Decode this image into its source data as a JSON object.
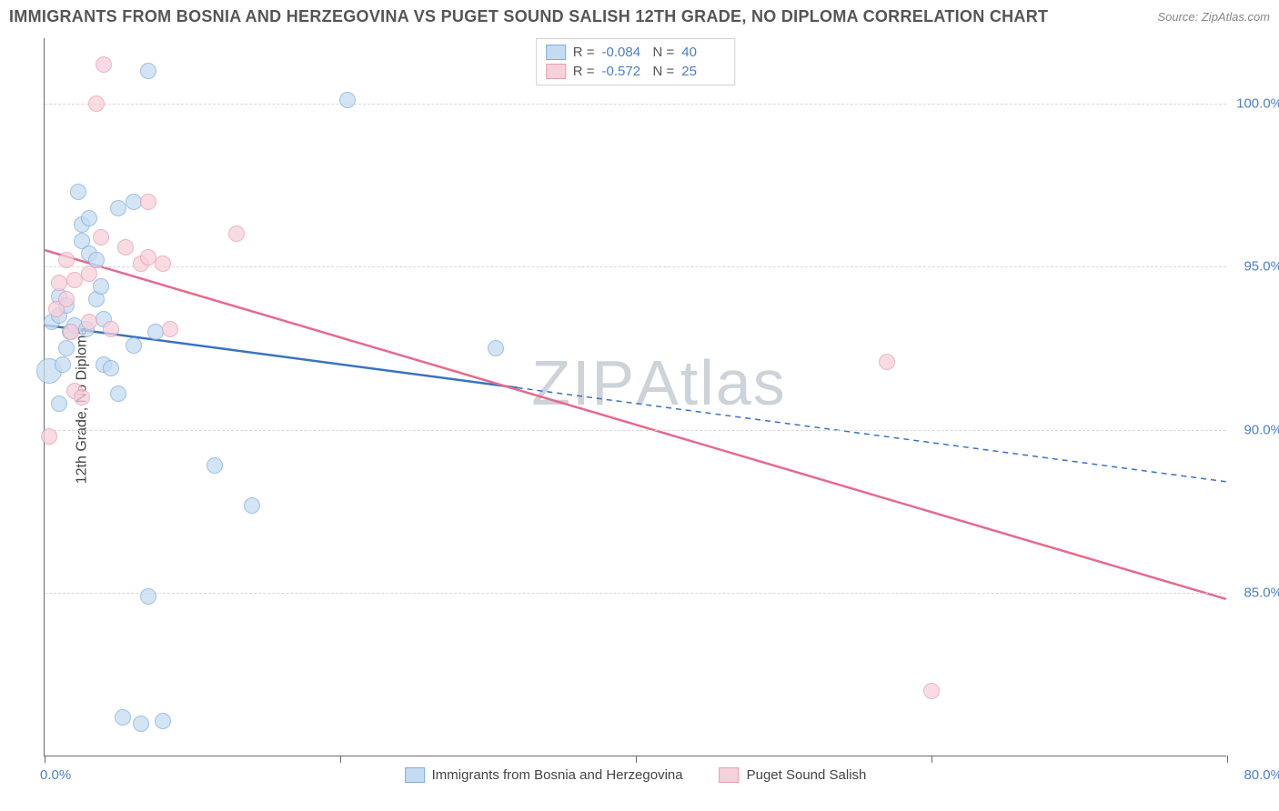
{
  "title": "IMMIGRANTS FROM BOSNIA AND HERZEGOVINA VS PUGET SOUND SALISH 12TH GRADE, NO DIPLOMA CORRELATION CHART",
  "source": "Source: ZipAtlas.com",
  "ylabel": "12th Grade, No Diploma",
  "watermark": "ZIPAtlas",
  "chart": {
    "type": "scatter",
    "xlim": [
      0,
      80
    ],
    "ylim": [
      80,
      102
    ],
    "yticks": [
      {
        "value": 85.0,
        "label": "85.0%"
      },
      {
        "value": 90.0,
        "label": "90.0%"
      },
      {
        "value": 95.0,
        "label": "95.0%"
      },
      {
        "value": 100.0,
        "label": "100.0%"
      }
    ],
    "xtick_positions": [
      0,
      20,
      40,
      60,
      80
    ],
    "xtick_labels": {
      "left": "0.0%",
      "right": "80.0%"
    },
    "grid_color": "#d8d8d8",
    "background_color": "#ffffff",
    "axis_color": "#6b6b6b",
    "label_color": "#4a7fc9",
    "series": [
      {
        "name": "Immigrants from Bosnia and Herzegovina",
        "color_fill": "#c5dbf2",
        "color_stroke": "#7faedc",
        "line_color": "#3a73c0",
        "marker_radius": 9,
        "marker_opacity": 0.75,
        "stats": {
          "R": "-0.084",
          "N": "40"
        },
        "trend": {
          "x1": 0,
          "y1": 93.2,
          "x2": 80,
          "y2": 88.4,
          "solid_until_x": 32
        },
        "points": [
          {
            "x": 0.3,
            "y": 91.8,
            "r": 14
          },
          {
            "x": 0.5,
            "y": 93.3
          },
          {
            "x": 1.0,
            "y": 93.5
          },
          {
            "x": 1.0,
            "y": 90.8
          },
          {
            "x": 1.0,
            "y": 94.1
          },
          {
            "x": 1.2,
            "y": 92.0
          },
          {
            "x": 1.5,
            "y": 93.8
          },
          {
            "x": 1.5,
            "y": 92.5
          },
          {
            "x": 1.7,
            "y": 93.0
          },
          {
            "x": 2.0,
            "y": 93.2
          },
          {
            "x": 2.3,
            "y": 97.3
          },
          {
            "x": 2.5,
            "y": 95.8
          },
          {
            "x": 2.5,
            "y": 96.3
          },
          {
            "x": 3.0,
            "y": 96.5
          },
          {
            "x": 3.0,
            "y": 95.4
          },
          {
            "x": 2.8,
            "y": 93.1
          },
          {
            "x": 3.5,
            "y": 94.0
          },
          {
            "x": 3.5,
            "y": 95.2
          },
          {
            "x": 3.8,
            "y": 94.4
          },
          {
            "x": 4.0,
            "y": 92.0
          },
          {
            "x": 4.0,
            "y": 93.4
          },
          {
            "x": 4.5,
            "y": 91.9
          },
          {
            "x": 5.0,
            "y": 96.8
          },
          {
            "x": 5.0,
            "y": 91.1
          },
          {
            "x": 5.3,
            "y": 81.2
          },
          {
            "x": 6.0,
            "y": 97.0
          },
          {
            "x": 6.0,
            "y": 92.6
          },
          {
            "x": 6.5,
            "y": 81.0
          },
          {
            "x": 7.0,
            "y": 101.0
          },
          {
            "x": 7.0,
            "y": 84.9
          },
          {
            "x": 7.5,
            "y": 93.0
          },
          {
            "x": 8.0,
            "y": 81.1
          },
          {
            "x": 11.5,
            "y": 88.9
          },
          {
            "x": 14.0,
            "y": 87.7
          },
          {
            "x": 20.5,
            "y": 100.1
          },
          {
            "x": 30.5,
            "y": 92.5
          }
        ]
      },
      {
        "name": "Puget Sound Salish",
        "color_fill": "#f6d0da",
        "color_stroke": "#e99db1",
        "line_color": "#e56b8c",
        "marker_radius": 9,
        "marker_opacity": 0.75,
        "stats": {
          "R": "-0.572",
          "N": "25"
        },
        "trend": {
          "x1": 0,
          "y1": 95.5,
          "x2": 80,
          "y2": 84.8,
          "solid_until_x": 80
        },
        "points": [
          {
            "x": 0.3,
            "y": 89.8
          },
          {
            "x": 0.8,
            "y": 93.7
          },
          {
            "x": 1.0,
            "y": 94.5
          },
          {
            "x": 1.5,
            "y": 95.2
          },
          {
            "x": 1.5,
            "y": 94.0
          },
          {
            "x": 1.8,
            "y": 93.0
          },
          {
            "x": 2.0,
            "y": 94.6
          },
          {
            "x": 2.0,
            "y": 91.2
          },
          {
            "x": 2.5,
            "y": 91.0
          },
          {
            "x": 3.0,
            "y": 94.8
          },
          {
            "x": 3.0,
            "y": 93.3
          },
          {
            "x": 3.5,
            "y": 100.0
          },
          {
            "x": 3.8,
            "y": 95.9
          },
          {
            "x": 4.0,
            "y": 101.2
          },
          {
            "x": 4.5,
            "y": 93.1
          },
          {
            "x": 5.5,
            "y": 95.6
          },
          {
            "x": 6.5,
            "y": 95.1
          },
          {
            "x": 7.0,
            "y": 95.3
          },
          {
            "x": 7.0,
            "y": 97.0
          },
          {
            "x": 8.0,
            "y": 95.1
          },
          {
            "x": 8.5,
            "y": 93.1
          },
          {
            "x": 13.0,
            "y": 96.0
          },
          {
            "x": 57.0,
            "y": 92.1
          },
          {
            "x": 60.0,
            "y": 82.0
          }
        ]
      }
    ]
  },
  "legend_bottom": [
    {
      "label": "Immigrants from Bosnia and Herzegovina",
      "series": 0
    },
    {
      "label": "Puget Sound Salish",
      "series": 1
    }
  ]
}
